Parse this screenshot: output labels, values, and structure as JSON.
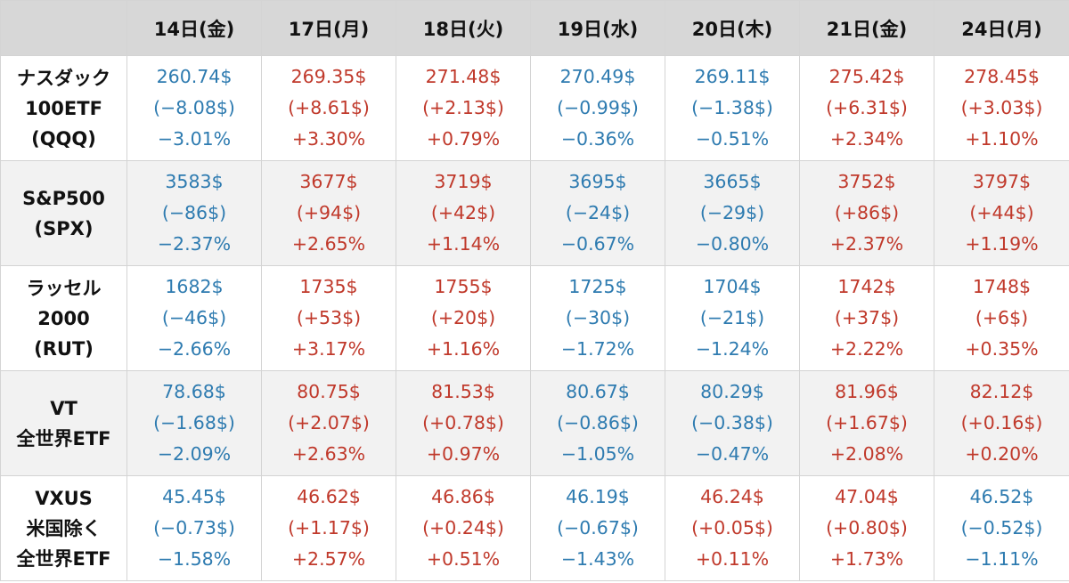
{
  "table": {
    "corner_label": "",
    "columns": [
      "14日(金)",
      "17日(月)",
      "18日(火)",
      "19日(水)",
      "20日(木)",
      "21日(金)",
      "24日(月)"
    ],
    "colors": {
      "up": "#c0392b",
      "down": "#2e7bb0"
    },
    "rows": [
      {
        "name_lines": [
          "ナスダック",
          "100ETF",
          "(QQQ)"
        ],
        "cells": [
          {
            "price": "260.74$",
            "change": "(−8.08$)",
            "pct": "−3.01%",
            "dir": "down"
          },
          {
            "price": "269.35$",
            "change": "(+8.61$)",
            "pct": "+3.30%",
            "dir": "up"
          },
          {
            "price": "271.48$",
            "change": "(+2.13$)",
            "pct": "+0.79%",
            "dir": "up"
          },
          {
            "price": "270.49$",
            "change": "(−0.99$)",
            "pct": "−0.36%",
            "dir": "down"
          },
          {
            "price": "269.11$",
            "change": "(−1.38$)",
            "pct": "−0.51%",
            "dir": "down"
          },
          {
            "price": "275.42$",
            "change": "(+6.31$)",
            "pct": "+2.34%",
            "dir": "up"
          },
          {
            "price": "278.45$",
            "change": "(+3.03$)",
            "pct": "+1.10%",
            "dir": "up"
          }
        ]
      },
      {
        "name_lines": [
          "S&P500",
          "(SPX)"
        ],
        "cells": [
          {
            "price": "3583$",
            "change": "(−86$)",
            "pct": "−2.37%",
            "dir": "down"
          },
          {
            "price": "3677$",
            "change": "(+94$)",
            "pct": "+2.65%",
            "dir": "up"
          },
          {
            "price": "3719$",
            "change": "(+42$)",
            "pct": "+1.14%",
            "dir": "up"
          },
          {
            "price": "3695$",
            "change": "(−24$)",
            "pct": "−0.67%",
            "dir": "down"
          },
          {
            "price": "3665$",
            "change": "(−29$)",
            "pct": "−0.80%",
            "dir": "down"
          },
          {
            "price": "3752$",
            "change": "(+86$)",
            "pct": "+2.37%",
            "dir": "up"
          },
          {
            "price": "3797$",
            "change": "(+44$)",
            "pct": "+1.19%",
            "dir": "up"
          }
        ]
      },
      {
        "name_lines": [
          "ラッセル",
          "2000",
          "(RUT)"
        ],
        "cells": [
          {
            "price": "1682$",
            "change": "(−46$)",
            "pct": "−2.66%",
            "dir": "down"
          },
          {
            "price": "1735$",
            "change": "(+53$)",
            "pct": "+3.17%",
            "dir": "up"
          },
          {
            "price": "1755$",
            "change": "(+20$)",
            "pct": "+1.16%",
            "dir": "up"
          },
          {
            "price": "1725$",
            "change": "(−30$)",
            "pct": "−1.72%",
            "dir": "down"
          },
          {
            "price": "1704$",
            "change": "(−21$)",
            "pct": "−1.24%",
            "dir": "down"
          },
          {
            "price": "1742$",
            "change": "(+37$)",
            "pct": "+2.22%",
            "dir": "up"
          },
          {
            "price": "1748$",
            "change": "(+6$)",
            "pct": "+0.35%",
            "dir": "up"
          }
        ]
      },
      {
        "name_lines": [
          "VT",
          "全世界ETF"
        ],
        "cells": [
          {
            "price": "78.68$",
            "change": "(−1.68$)",
            "pct": "−2.09%",
            "dir": "down"
          },
          {
            "price": "80.75$",
            "change": "(+2.07$)",
            "pct": "+2.63%",
            "dir": "up"
          },
          {
            "price": "81.53$",
            "change": "(+0.78$)",
            "pct": "+0.97%",
            "dir": "up"
          },
          {
            "price": "80.67$",
            "change": "(−0.86$)",
            "pct": "−1.05%",
            "dir": "down"
          },
          {
            "price": "80.29$",
            "change": "(−0.38$)",
            "pct": "−0.47%",
            "dir": "down"
          },
          {
            "price": "81.96$",
            "change": "(+1.67$)",
            "pct": "+2.08%",
            "dir": "up"
          },
          {
            "price": "82.12$",
            "change": "(+0.16$)",
            "pct": "+0.20%",
            "dir": "up"
          }
        ]
      },
      {
        "name_lines": [
          "VXUS",
          "米国除く",
          "全世界ETF"
        ],
        "cells": [
          {
            "price": "45.45$",
            "change": "(−0.73$)",
            "pct": "−1.58%",
            "dir": "down"
          },
          {
            "price": "46.62$",
            "change": "(+1.17$)",
            "pct": "+2.57%",
            "dir": "up"
          },
          {
            "price": "46.86$",
            "change": "(+0.24$)",
            "pct": "+0.51%",
            "dir": "up"
          },
          {
            "price": "46.19$",
            "change": "(−0.67$)",
            "pct": "−1.43%",
            "dir": "down"
          },
          {
            "price": "46.24$",
            "change": "(+0.05$)",
            "pct": "+0.11%",
            "dir": "up"
          },
          {
            "price": "47.04$",
            "change": "(+0.80$)",
            "pct": "+1.73%",
            "dir": "up"
          },
          {
            "price": "46.52$",
            "change": "(−0.52$)",
            "pct": "−1.11%",
            "dir": "down"
          }
        ]
      }
    ]
  }
}
